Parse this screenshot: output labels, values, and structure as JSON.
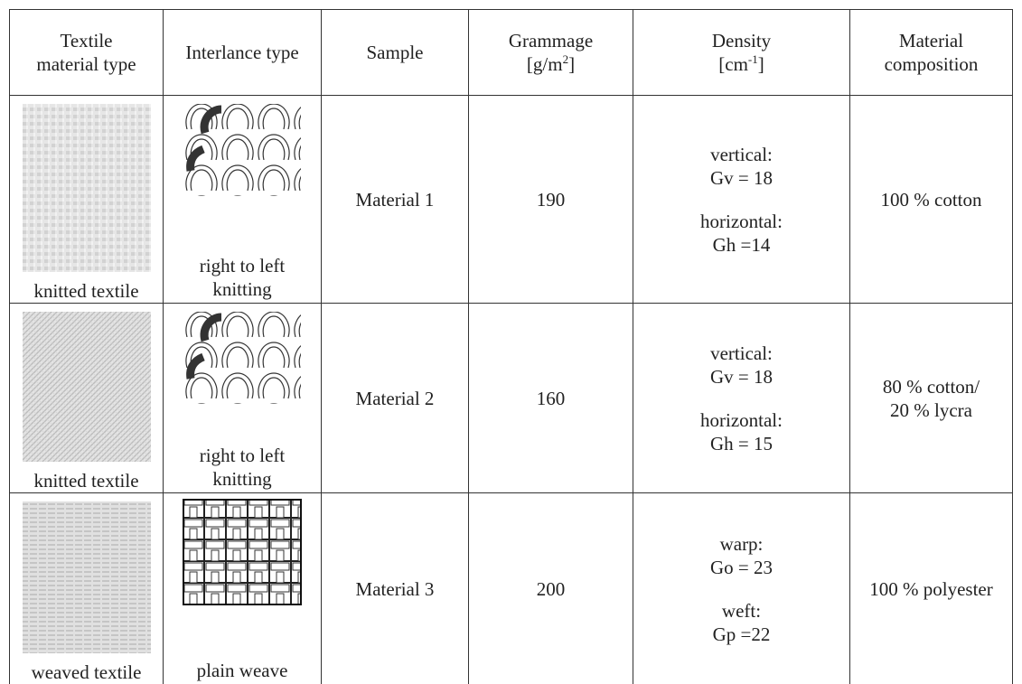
{
  "table": {
    "header": {
      "material_type": [
        "Textile",
        "material type"
      ],
      "interlace": "Interlance type",
      "sample": "Sample",
      "grammage": [
        "Grammage",
        "[g/m",
        "2",
        "]"
      ],
      "density": [
        "Density",
        "[cm",
        "-1",
        "]"
      ],
      "composition": [
        "Material",
        "composition"
      ]
    },
    "rows": [
      {
        "material_type": "knitted textile",
        "interlace": [
          "right to left",
          "knitting"
        ],
        "sample": "Material 1",
        "grammage": 190,
        "density": [
          "vertical:",
          "Gv = 18",
          "horizontal:",
          "Gh =14"
        ],
        "composition": [
          "100 % cotton"
        ]
      },
      {
        "material_type": "knitted textile",
        "interlace": [
          "right to left",
          "knitting"
        ],
        "sample": "Material 2",
        "grammage": 160,
        "density": [
          "vertical:",
          "Gv = 18",
          "horizontal:",
          "Gh = 15"
        ],
        "composition": [
          "80 % cotton/",
          "20 % lycra"
        ]
      },
      {
        "material_type": "weaved textile",
        "interlace": [
          "plain weave"
        ],
        "sample": "Material 3",
        "grammage": 200,
        "density": [
          "warp:",
          "Go = 23",
          "weft:",
          "Gp =22"
        ],
        "composition": [
          "100 % polyester"
        ]
      }
    ]
  }
}
